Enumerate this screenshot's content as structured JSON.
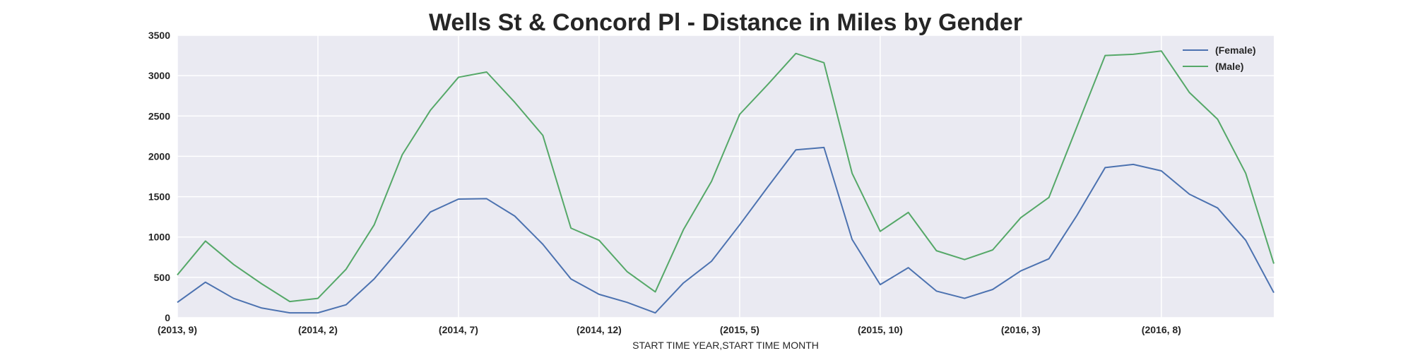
{
  "chart_data": {
    "type": "line",
    "title": "Wells St & Concord Pl - Distance in Miles by Gender",
    "xlabel": "START TIME YEAR,START TIME MONTH",
    "ylabel": "",
    "ylim": [
      0,
      3500
    ],
    "yticks": [
      0,
      500,
      1000,
      1500,
      2000,
      2500,
      3000,
      3500
    ],
    "grid": true,
    "legend_position": "top-right",
    "x": [
      "(2013, 9)",
      "(2013, 10)",
      "(2013, 11)",
      "(2013, 12)",
      "(2014, 1)",
      "(2014, 2)",
      "(2014, 3)",
      "(2014, 4)",
      "(2014, 5)",
      "(2014, 6)",
      "(2014, 7)",
      "(2014, 8)",
      "(2014, 9)",
      "(2014, 10)",
      "(2014, 11)",
      "(2014, 12)",
      "(2015, 1)",
      "(2015, 2)",
      "(2015, 3)",
      "(2015, 4)",
      "(2015, 5)",
      "(2015, 6)",
      "(2015, 7)",
      "(2015, 8)",
      "(2015, 9)",
      "(2015, 10)",
      "(2015, 11)",
      "(2015, 12)",
      "(2016, 1)",
      "(2016, 2)",
      "(2016, 3)",
      "(2016, 4)",
      "(2016, 5)",
      "(2016, 6)",
      "(2016, 7)",
      "(2016, 8)",
      "(2016, 9)",
      "(2016, 10)",
      "(2016, 11)",
      "(2016, 12)"
    ],
    "xticks": [
      "(2013, 9)",
      "(2014, 2)",
      "(2014, 7)",
      "(2014, 12)",
      "(2015, 5)",
      "(2015, 10)",
      "(2016, 3)",
      "(2016, 8)"
    ],
    "series": [
      {
        "name": "(Female)",
        "color": "#4c72b0",
        "values": [
          190,
          440,
          240,
          120,
          60,
          60,
          160,
          480,
          890,
          1310,
          1470,
          1475,
          1260,
          910,
          480,
          290,
          190,
          60,
          430,
          700,
          1150,
          1620,
          2080,
          2110,
          970,
          410,
          620,
          330,
          240,
          350,
          580,
          730,
          1270,
          1860,
          1900,
          1820,
          1530,
          1360,
          960,
          310
        ]
      },
      {
        "name": "(Male)",
        "color": "#55a868",
        "values": [
          530,
          950,
          660,
          420,
          200,
          240,
          600,
          1150,
          2020,
          2570,
          2980,
          3045,
          2670,
          2260,
          1110,
          960,
          570,
          320,
          1090,
          1690,
          2520,
          2890,
          3275,
          3160,
          1790,
          1070,
          1305,
          830,
          720,
          840,
          1240,
          1490,
          2370,
          3250,
          3265,
          3305,
          2790,
          2460,
          1790,
          670
        ]
      }
    ]
  }
}
